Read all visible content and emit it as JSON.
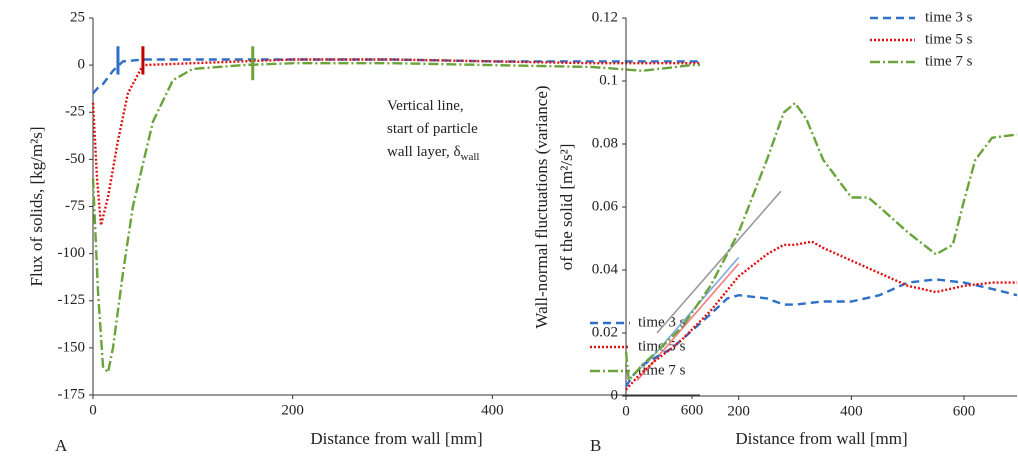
{
  "chart_data": [
    {
      "type": "line",
      "panel_label": "A",
      "xlabel": "Distance from wall [mm]",
      "ylabel": "Flux of solids, [kg/m²s]",
      "xlim": [
        0,
        608
      ],
      "xticks": [
        0,
        200,
        400,
        600
      ],
      "ylim": [
        -175,
        25
      ],
      "yticks": [
        25,
        0,
        -25,
        -50,
        -75,
        -100,
        -125,
        -150,
        -175
      ],
      "legend": "lower right",
      "series": [
        {
          "name": "time 3 s",
          "color": "#2e6fc7",
          "dash": "8,5",
          "x": [
            0,
            5,
            10,
            20,
            30,
            50,
            100,
            200,
            300,
            400,
            500,
            600,
            608
          ],
          "values": [
            -15,
            -12,
            -10,
            -3,
            2,
            3,
            3,
            3,
            3,
            2,
            2,
            2,
            2
          ]
        },
        {
          "name": "time 5 s",
          "color": "#e01010",
          "dash": "2,2",
          "x": [
            0,
            4,
            8,
            15,
            25,
            35,
            50,
            100,
            200,
            300,
            400,
            500,
            600,
            608
          ],
          "values": [
            -20,
            -60,
            -85,
            -70,
            -40,
            -15,
            0,
            1,
            3,
            3,
            2,
            1,
            1,
            1
          ]
        },
        {
          "name": "time 7 s",
          "color": "#6aa33a",
          "dash": "10,3,2,3",
          "x": [
            0,
            5,
            10,
            15,
            20,
            25,
            30,
            40,
            60,
            80,
            100,
            150,
            200,
            300,
            400,
            500,
            550,
            600,
            608
          ],
          "values": [
            -60,
            -120,
            -160,
            -163,
            -150,
            -130,
            -110,
            -75,
            -30,
            -8,
            -2,
            0,
            1,
            1,
            0,
            -1,
            -3,
            0,
            0
          ]
        }
      ],
      "markers": [
        {
          "color": "#2e6fc7",
          "x": 25,
          "values": [
            -5,
            10
          ]
        },
        {
          "color": "#c00000",
          "x": 50,
          "values": [
            -5,
            10
          ]
        },
        {
          "color": "#6aa33a",
          "x": 160,
          "values": [
            -8,
            10
          ]
        }
      ],
      "annotation": {
        "lines": [
          "Vertical line,",
          "start of particle",
          "wall layer, δ"
        ],
        "subscript": "wall"
      }
    },
    {
      "type": "line",
      "panel_label": "B",
      "xlabel": "Distance from wall [mm]",
      "ylabel": [
        "Wall-normal fluctuations (variance)",
        "of the solid [m²/s²]"
      ],
      "xlim": [
        0,
        694
      ],
      "xticks": [
        0,
        200,
        400,
        600
      ],
      "ylim": [
        0,
        0.12
      ],
      "yticks": [
        0,
        0.02,
        0.04,
        0.06,
        0.08,
        0.1,
        0.12
      ],
      "legend": "upper right",
      "series": [
        {
          "name": "time 3 s",
          "color": "#2e6fc7",
          "dash": "8,5",
          "x": [
            0,
            10,
            30,
            50,
            80,
            100,
            150,
            180,
            200,
            250,
            280,
            300,
            350,
            400,
            450,
            500,
            550,
            600,
            650,
            694
          ],
          "values": [
            0.003,
            0.006,
            0.01,
            0.012,
            0.015,
            0.018,
            0.026,
            0.031,
            0.032,
            0.031,
            0.029,
            0.029,
            0.03,
            0.03,
            0.032,
            0.036,
            0.037,
            0.036,
            0.034,
            0.032
          ]
        },
        {
          "name": "time 5 s",
          "color": "#e01010",
          "dash": "2,2",
          "x": [
            0,
            20,
            50,
            80,
            100,
            150,
            200,
            250,
            280,
            300,
            330,
            350,
            400,
            450,
            500,
            550,
            600,
            650,
            694
          ],
          "values": [
            0.002,
            0.006,
            0.011,
            0.015,
            0.018,
            0.027,
            0.038,
            0.045,
            0.048,
            0.048,
            0.049,
            0.047,
            0.043,
            0.039,
            0.035,
            0.033,
            0.035,
            0.036,
            0.036
          ]
        },
        {
          "name": "time 7 s",
          "color": "#6aa33a",
          "dash": "10,3,2,3",
          "x": [
            0,
            5,
            10,
            30,
            60,
            100,
            150,
            200,
            250,
            280,
            300,
            320,
            350,
            400,
            430,
            450,
            500,
            550,
            580,
            600,
            620,
            650,
            694
          ],
          "values": [
            0.014,
            0.005,
            0.006,
            0.01,
            0.015,
            0.022,
            0.035,
            0.052,
            0.075,
            0.09,
            0.093,
            0.088,
            0.075,
            0.063,
            0.063,
            0.06,
            0.052,
            0.045,
            0.048,
            0.062,
            0.075,
            0.082,
            0.083
          ]
        }
      ],
      "trend_lines": [
        {
          "color": "#999999",
          "x": [
            55,
            275
          ],
          "values": [
            0.02,
            0.065
          ]
        },
        {
          "color": "#7fa6e0",
          "x": [
            35,
            200
          ],
          "values": [
            0.01,
            0.044
          ]
        },
        {
          "color": "#f08080",
          "x": [
            20,
            200
          ],
          "values": [
            0.005,
            0.042
          ]
        }
      ]
    }
  ]
}
